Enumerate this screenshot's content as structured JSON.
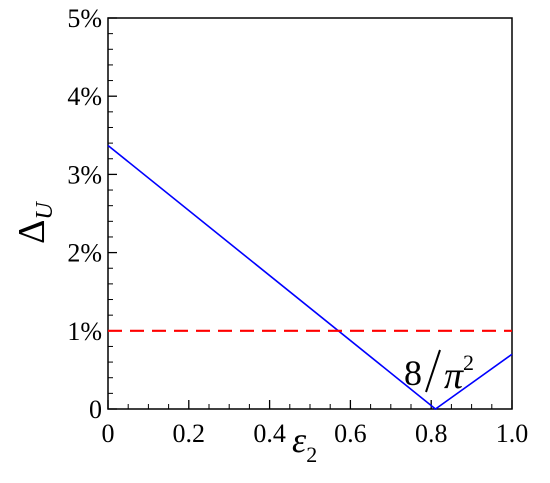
{
  "chart_data": {
    "type": "line",
    "xlabel": "ε",
    "xlabel_sub": "2",
    "ylabel": "Δ",
    "ylabel_sub": "U",
    "xlim": [
      0,
      1.0
    ],
    "ylim": [
      0,
      5
    ],
    "x_ticks": [
      0,
      0.2,
      0.4,
      0.6,
      0.8,
      1.0
    ],
    "x_tick_labels": [
      "0",
      "0.2",
      "0.4",
      "0.6",
      "0.8",
      "1.0"
    ],
    "y_ticks": [
      0,
      1,
      2,
      3,
      4,
      5
    ],
    "y_tick_labels": [
      "0",
      "1%",
      "2%",
      "3%",
      "4%",
      "5%"
    ],
    "grid": false,
    "series": [
      {
        "style": "solid",
        "color": "#0000ff",
        "x": [
          0,
          0.8106,
          1.0
        ],
        "y": [
          3.37,
          0,
          0.7
        ]
      },
      {
        "style": "dashed",
        "color": "#ff0000",
        "x": [
          0,
          1.0
        ],
        "y": [
          1,
          1
        ]
      }
    ],
    "annotations": [
      {
        "numerator": "8",
        "denominator": "π",
        "exponent": "2",
        "x": 0.8106,
        "y": 0.5
      }
    ]
  }
}
